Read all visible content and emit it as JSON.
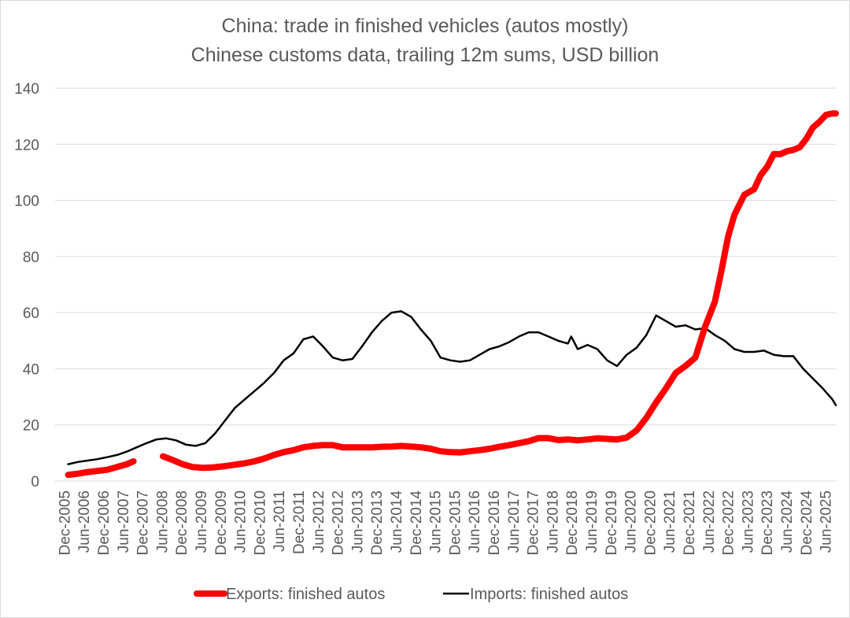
{
  "chart_data": {
    "type": "line",
    "title": "China: trade in finished vehicles  (autos mostly)",
    "subtitle": "Chinese customs data, trailing 12m sums, USD billion",
    "xlabel": "",
    "ylabel": "",
    "ylim": [
      0,
      140
    ],
    "yticks": [
      0,
      20,
      40,
      60,
      80,
      100,
      120,
      140
    ],
    "grid": true,
    "legend_position": "bottom",
    "xrange": [
      2005.917,
      2025.834
    ],
    "xtick_labels": [
      "Dec-2005",
      "Jun-2006",
      "Dec-2006",
      "Jun-2007",
      "Dec-2007",
      "Jun-2008",
      "Dec-2008",
      "Jun-2009",
      "Dec-2009",
      "Jun-2010",
      "Dec-2010",
      "Jun-2011",
      "Dec-2011",
      "Jun-2012",
      "Dec-2012",
      "Jun-2013",
      "Dec-2013",
      "Jun-2014",
      "Dec-2014",
      "Jun-2015",
      "Dec-2015",
      "Jun-2016",
      "Dec-2016",
      "Jun-2017",
      "Dec-2017",
      "Jun-2018",
      "Dec-2018",
      "Jun-2019",
      "Dec-2019",
      "Jun-2020",
      "Dec-2020",
      "Jun-2021",
      "Dec-2021",
      "Jun-2022",
      "Dec-2022",
      "Jun-2023",
      "Dec-2023",
      "Jun-2024",
      "Dec-2024",
      "Jun-2025"
    ],
    "series": [
      {
        "name": "Exports: finished autos",
        "color": "#ff0000",
        "segments": [
          {
            "x": [
              2006.25,
              2006.5,
              2006.75,
              2007.0,
              2007.25,
              2007.5,
              2007.75,
              2007.917
            ],
            "y": [
              2.2,
              2.6,
              3.2,
              3.6,
              4.0,
              5.0,
              6.0,
              7.0
            ]
          },
          {
            "x": [
              2008.667,
              2008.917,
              2009.167,
              2009.417,
              2009.667,
              2009.917,
              2010.25,
              2010.5,
              2010.75,
              2011.0,
              2011.25,
              2011.5,
              2011.75,
              2012.0,
              2012.25,
              2012.5,
              2012.75,
              2013.0,
              2013.25,
              2013.5,
              2013.75,
              2014.0,
              2014.25,
              2014.5,
              2014.75,
              2015.0,
              2015.25,
              2015.5,
              2015.75,
              2016.0,
              2016.25,
              2016.5,
              2016.75,
              2017.0,
              2017.25,
              2017.5,
              2017.75,
              2018.0,
              2018.25,
              2018.5,
              2018.75,
              2019.0,
              2019.25,
              2019.5,
              2019.75,
              2020.0,
              2020.25,
              2020.5,
              2020.75,
              2021.0,
              2021.25,
              2021.5,
              2021.75,
              2022.0,
              2022.25,
              2022.5,
              2022.75,
              2022.917,
              2023.083,
              2023.25,
              2023.5,
              2023.75,
              2023.917,
              2024.083,
              2024.25,
              2024.417,
              2024.583,
              2024.75,
              2024.917,
              2025.083,
              2025.25,
              2025.417,
              2025.583,
              2025.75,
              2025.834
            ],
            "y": [
              8.8,
              7.5,
              6.0,
              5.0,
              4.7,
              4.8,
              5.3,
              5.8,
              6.3,
              7.0,
              8.0,
              9.3,
              10.3,
              11.0,
              12.0,
              12.5,
              12.8,
              12.8,
              12.0,
              12.0,
              12.0,
              12.0,
              12.2,
              12.3,
              12.5,
              12.3,
              12.0,
              11.5,
              10.6,
              10.3,
              10.2,
              10.6,
              11.0,
              11.5,
              12.2,
              12.8,
              13.5,
              14.2,
              15.3,
              15.3,
              14.6,
              14.8,
              14.5,
              14.8,
              15.2,
              15.0,
              14.8,
              15.5,
              18.0,
              22.5,
              28.0,
              33.0,
              38.5,
              41.0,
              44.0,
              55.0,
              64.0,
              75.0,
              87.0,
              95.0,
              102.0,
              104.0,
              109.0,
              112.0,
              116.5,
              116.5,
              117.5,
              118.0,
              119.0,
              122.0,
              126.0,
              128.0,
              130.5,
              131.0,
              131.0
            ]
          }
        ]
      },
      {
        "name": "Imports: finished autos",
        "color": "#000000",
        "segments": [
          {
            "x": [
              2006.25,
              2006.5,
              2006.75,
              2007.0,
              2007.25,
              2007.5,
              2007.75,
              2008.0,
              2008.25,
              2008.5,
              2008.75,
              2009.0,
              2009.25,
              2009.5,
              2009.75,
              2010.0,
              2010.25,
              2010.5,
              2010.75,
              2011.0,
              2011.25,
              2011.5,
              2011.75,
              2012.0,
              2012.25,
              2012.5,
              2012.75,
              2013.0,
              2013.25,
              2013.5,
              2013.75,
              2014.0,
              2014.25,
              2014.5,
              2014.75,
              2015.0,
              2015.25,
              2015.5,
              2015.75,
              2016.0,
              2016.25,
              2016.5,
              2016.75,
              2017.0,
              2017.25,
              2017.5,
              2017.75,
              2018.0,
              2018.25,
              2018.5,
              2018.75,
              2019.0,
              2019.083,
              2019.25,
              2019.5,
              2019.75,
              2020.0,
              2020.25,
              2020.5,
              2020.75,
              2021.0,
              2021.25,
              2021.5,
              2021.75,
              2022.0,
              2022.25,
              2022.5,
              2022.75,
              2023.0,
              2023.25,
              2023.5,
              2023.75,
              2024.0,
              2024.25,
              2024.5,
              2024.75,
              2025.0,
              2025.25,
              2025.5,
              2025.75,
              2025.834
            ],
            "y": [
              6.0,
              6.8,
              7.3,
              7.8,
              8.5,
              9.3,
              10.5,
              12.0,
              13.5,
              14.8,
              15.2,
              14.5,
              13.0,
              12.5,
              13.5,
              17.0,
              21.5,
              26.0,
              29.0,
              32.0,
              35.0,
              38.5,
              43.0,
              45.5,
              50.5,
              51.5,
              48.0,
              44.0,
              43.0,
              43.5,
              48.0,
              53.0,
              57.0,
              60.0,
              60.5,
              58.5,
              54.0,
              50.0,
              44.0,
              43.0,
              42.5,
              43.0,
              45.0,
              47.0,
              48.0,
              49.5,
              51.5,
              53.0,
              53.0,
              51.5,
              50.0,
              49.0,
              51.5,
              47.0,
              48.5,
              47.0,
              43.0,
              41.0,
              45.0,
              47.5,
              52.0,
              59.0,
              57.0,
              55.0,
              55.5,
              54.0,
              54.5,
              52.0,
              50.0,
              47.0,
              46.0,
              46.0,
              46.5,
              45.0,
              44.5,
              44.5,
              40.0,
              36.5,
              33.0,
              29.0,
              27.0
            ]
          }
        ]
      }
    ]
  }
}
